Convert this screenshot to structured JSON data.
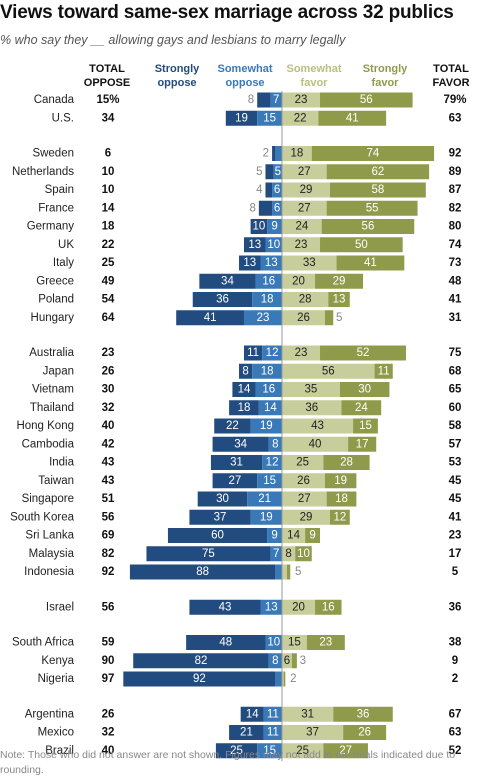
{
  "title": "Views toward same-sex marriage across 32 publics",
  "subtitle": "% who say they __ allowing gays and lesbians to marry legally",
  "headers": {
    "total_oppose": "TOTAL OPPOSE",
    "strongly_oppose": "Strongly oppose",
    "somewhat_oppose": "Somewhat oppose",
    "somewhat_favor": "Somewhat favor",
    "strongly_favor": "Strongly favor",
    "total_favor": "TOTAL FAVOR"
  },
  "colors": {
    "strongly_oppose": "#224b7f",
    "somewhat_oppose": "#3a79b8",
    "somewhat_favor": "#c8ce9b",
    "strongly_favor": "#8f9b4a",
    "header_strongly_oppose": "#224b7f",
    "header_somewhat_oppose": "#3a79b8",
    "header_somewhat_favor": "#b9c07f",
    "header_strongly_favor": "#8f9b4a",
    "center_line": "#999999"
  },
  "note": "Note: Those who did not answer are not shown. Figures may not add to the totals indicated due to rounding.",
  "chart_data": {
    "type": "diverging-bar",
    "series_order": [
      "strongly_oppose",
      "somewhat_oppose",
      "somewhat_favor",
      "strongly_favor"
    ],
    "groups": [
      {
        "rows": [
          {
            "country": "Canada",
            "total_oppose": "15%",
            "strongly_oppose": 8,
            "somewhat_oppose": 7,
            "somewhat_favor": 23,
            "strongly_favor": 56,
            "total_favor": "79%"
          },
          {
            "country": "U.S.",
            "total_oppose": "34",
            "strongly_oppose": 19,
            "somewhat_oppose": 15,
            "somewhat_favor": 22,
            "strongly_favor": 41,
            "total_favor": "63"
          }
        ]
      },
      {
        "rows": [
          {
            "country": "Sweden",
            "total_oppose": "6",
            "strongly_oppose": 2,
            "somewhat_oppose": 4,
            "somewhat_favor": 18,
            "strongly_favor": 74,
            "total_favor": "92"
          },
          {
            "country": "Netherlands",
            "total_oppose": "10",
            "strongly_oppose": 5,
            "somewhat_oppose": 5,
            "somewhat_favor": 27,
            "strongly_favor": 62,
            "total_favor": "89"
          },
          {
            "country": "Spain",
            "total_oppose": "10",
            "strongly_oppose": 4,
            "somewhat_oppose": 6,
            "somewhat_favor": 29,
            "strongly_favor": 58,
            "total_favor": "87"
          },
          {
            "country": "France",
            "total_oppose": "14",
            "strongly_oppose": 8,
            "somewhat_oppose": 6,
            "somewhat_favor": 27,
            "strongly_favor": 55,
            "total_favor": "82"
          },
          {
            "country": "Germany",
            "total_oppose": "18",
            "strongly_oppose": 10,
            "somewhat_oppose": 9,
            "somewhat_favor": 24,
            "strongly_favor": 56,
            "total_favor": "80"
          },
          {
            "country": "UK",
            "total_oppose": "22",
            "strongly_oppose": 13,
            "somewhat_oppose": 10,
            "somewhat_favor": 23,
            "strongly_favor": 50,
            "total_favor": "74"
          },
          {
            "country": "Italy",
            "total_oppose": "25",
            "strongly_oppose": 13,
            "somewhat_oppose": 13,
            "somewhat_favor": 33,
            "strongly_favor": 41,
            "total_favor": "73"
          },
          {
            "country": "Greece",
            "total_oppose": "49",
            "strongly_oppose": 34,
            "somewhat_oppose": 16,
            "somewhat_favor": 20,
            "strongly_favor": 29,
            "total_favor": "48"
          },
          {
            "country": "Poland",
            "total_oppose": "54",
            "strongly_oppose": 36,
            "somewhat_oppose": 18,
            "somewhat_favor": 28,
            "strongly_favor": 13,
            "total_favor": "41"
          },
          {
            "country": "Hungary",
            "total_oppose": "64",
            "strongly_oppose": 41,
            "somewhat_oppose": 23,
            "somewhat_favor": 26,
            "strongly_favor": 5,
            "total_favor": "31"
          }
        ]
      },
      {
        "rows": [
          {
            "country": "Australia",
            "total_oppose": "23",
            "strongly_oppose": 11,
            "somewhat_oppose": 12,
            "somewhat_favor": 23,
            "strongly_favor": 52,
            "total_favor": "75"
          },
          {
            "country": "Japan",
            "total_oppose": "26",
            "strongly_oppose": 8,
            "somewhat_oppose": 18,
            "somewhat_favor": 56,
            "strongly_favor": 11,
            "total_favor": "68"
          },
          {
            "country": "Vietnam",
            "total_oppose": "30",
            "strongly_oppose": 14,
            "somewhat_oppose": 16,
            "somewhat_favor": 35,
            "strongly_favor": 30,
            "total_favor": "65"
          },
          {
            "country": "Thailand",
            "total_oppose": "32",
            "strongly_oppose": 18,
            "somewhat_oppose": 14,
            "somewhat_favor": 36,
            "strongly_favor": 24,
            "total_favor": "60"
          },
          {
            "country": "Hong Kong",
            "total_oppose": "40",
            "strongly_oppose": 22,
            "somewhat_oppose": 19,
            "somewhat_favor": 43,
            "strongly_favor": 15,
            "total_favor": "58"
          },
          {
            "country": "Cambodia",
            "total_oppose": "42",
            "strongly_oppose": 34,
            "somewhat_oppose": 8,
            "somewhat_favor": 40,
            "strongly_favor": 17,
            "total_favor": "57"
          },
          {
            "country": "India",
            "total_oppose": "43",
            "strongly_oppose": 31,
            "somewhat_oppose": 12,
            "somewhat_favor": 25,
            "strongly_favor": 28,
            "total_favor": "53"
          },
          {
            "country": "Taiwan",
            "total_oppose": "43",
            "strongly_oppose": 27,
            "somewhat_oppose": 15,
            "somewhat_favor": 26,
            "strongly_favor": 19,
            "total_favor": "45"
          },
          {
            "country": "Singapore",
            "total_oppose": "51",
            "strongly_oppose": 30,
            "somewhat_oppose": 21,
            "somewhat_favor": 27,
            "strongly_favor": 18,
            "total_favor": "45"
          },
          {
            "country": "South Korea",
            "total_oppose": "56",
            "strongly_oppose": 37,
            "somewhat_oppose": 19,
            "somewhat_favor": 29,
            "strongly_favor": 12,
            "total_favor": "41"
          },
          {
            "country": "Sri Lanka",
            "total_oppose": "69",
            "strongly_oppose": 60,
            "somewhat_oppose": 9,
            "somewhat_favor": 14,
            "strongly_favor": 9,
            "total_favor": "23"
          },
          {
            "country": "Malaysia",
            "total_oppose": "82",
            "strongly_oppose": 75,
            "somewhat_oppose": 7,
            "somewhat_favor": 8,
            "strongly_favor": 10,
            "total_favor": "17"
          },
          {
            "country": "Indonesia",
            "total_oppose": "92",
            "strongly_oppose": 88,
            "somewhat_oppose": 4,
            "somewhat_favor": 3,
            "strongly_favor": 2,
            "total_favor": "5"
          }
        ]
      },
      {
        "rows": [
          {
            "country": "Israel",
            "total_oppose": "56",
            "strongly_oppose": 43,
            "somewhat_oppose": 13,
            "somewhat_favor": 20,
            "strongly_favor": 16,
            "total_favor": "36"
          }
        ]
      },
      {
        "rows": [
          {
            "country": "South Africa",
            "total_oppose": "59",
            "strongly_oppose": 48,
            "somewhat_oppose": 10,
            "somewhat_favor": 15,
            "strongly_favor": 23,
            "total_favor": "38"
          },
          {
            "country": "Kenya",
            "total_oppose": "90",
            "strongly_oppose": 82,
            "somewhat_oppose": 8,
            "somewhat_favor": 6,
            "strongly_favor": 3,
            "total_favor": "9"
          },
          {
            "country": "Nigeria",
            "total_oppose": "97",
            "strongly_oppose": 92,
            "somewhat_oppose": 4,
            "somewhat_favor": 1,
            "strongly_favor": 1,
            "total_favor": "2"
          }
        ]
      },
      {
        "rows": [
          {
            "country": "Argentina",
            "total_oppose": "26",
            "strongly_oppose": 14,
            "somewhat_oppose": 11,
            "somewhat_favor": 31,
            "strongly_favor": 36,
            "total_favor": "67"
          },
          {
            "country": "Mexico",
            "total_oppose": "32",
            "strongly_oppose": 21,
            "somewhat_oppose": 11,
            "somewhat_favor": 37,
            "strongly_favor": 26,
            "total_favor": "63"
          },
          {
            "country": "Brazil",
            "total_oppose": "40",
            "strongly_oppose": 25,
            "somewhat_oppose": 15,
            "somewhat_favor": 25,
            "strongly_favor": 27,
            "total_favor": "52"
          }
        ]
      }
    ]
  }
}
